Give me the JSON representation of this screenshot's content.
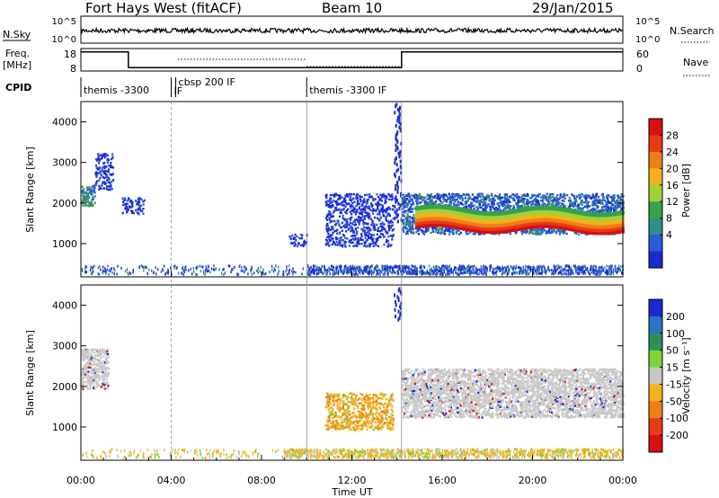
{
  "header": {
    "radar": "Fort Hays West (fitACF)",
    "beam": "Beam 10",
    "date": "29/Jan/2015"
  },
  "strips": {
    "nsky_label": "N.Sky",
    "nsearch_label": "N.Search",
    "nsky_ticks": [
      "10^5",
      "10^0"
    ],
    "nsearch_ticks": [
      "10^5",
      "10^0"
    ],
    "freq_label_1": "Freq.",
    "freq_label_2": "[MHz]",
    "freq_ticks": [
      "18",
      "8"
    ],
    "nave_label": "Nave",
    "nave_ticks": [
      "60",
      "0"
    ],
    "cpid_label": "CPID",
    "cpid_segments": [
      {
        "label": "themis -3300",
        "start": 0,
        "end": 4
      },
      {
        "label": "IF",
        "start": 4,
        "end": 4.2
      },
      {
        "label": "cbsp 200 IF",
        "start": 4.2,
        "end": 10
      },
      {
        "label": "themis -3300 IF",
        "start": 10,
        "end": 24
      }
    ],
    "freq_steps": [
      {
        "t0": 0,
        "t1": 2.1,
        "f": 16.5
      },
      {
        "t0": 2.1,
        "t1": 14.2,
        "f": 9.5
      },
      {
        "t0": 14.2,
        "t1": 24,
        "f": 16.5
      }
    ]
  },
  "time_axis": {
    "label": "Time UT",
    "ticks": [
      "00:00",
      "04:00",
      "08:00",
      "12:00",
      "16:00",
      "20:00",
      "00:00"
    ],
    "range": [
      0,
      24
    ]
  },
  "power_panel": {
    "ylabel": "Slant Range [km]",
    "yticks": [
      "1000",
      "2000",
      "3000",
      "4000"
    ],
    "colorbar_label": "Power [dB]",
    "colorbar_ticks": [
      "4",
      "8",
      "12",
      "16",
      "20",
      "24",
      "28"
    ],
    "colors": [
      "#1a2bd6",
      "#2a5cd8",
      "#2f8f8a",
      "#39a14a",
      "#9fd23a",
      "#f2b21c",
      "#f07e1a",
      "#e83b18",
      "#d81010"
    ]
  },
  "velocity_panel": {
    "ylabel": "Slant Range [km]",
    "yticks": [
      "1000",
      "2000",
      "3000",
      "4000"
    ],
    "colorbar_label": "Velocity [m s⁻¹]",
    "colorbar_ticks": [
      "200",
      "100",
      "50",
      "15",
      "-15",
      "-50",
      "-100",
      "-200"
    ],
    "colors": [
      "#1a2bd6",
      "#2a72c8",
      "#2f8f5a",
      "#7ed23a",
      "#c8c8c8",
      "#f2b21c",
      "#f07e1a",
      "#e83b18",
      "#d81010"
    ]
  },
  "chart_data": {
    "type": "heatmap",
    "x_range_hours": [
      0,
      24
    ],
    "y_range_km": [
      180,
      4500
    ],
    "power_regions": [
      {
        "t0": 0.0,
        "t1": 0.6,
        "r0": 1900,
        "r1": 2400,
        "level": "green"
      },
      {
        "t0": 0.6,
        "t1": 1.4,
        "r0": 2300,
        "r1": 3200,
        "level": "blue"
      },
      {
        "t0": 1.8,
        "t1": 2.8,
        "r0": 1700,
        "r1": 2100,
        "level": "blue"
      },
      {
        "t0": 9.2,
        "t1": 10.0,
        "r0": 900,
        "r1": 1200,
        "level": "blue"
      },
      {
        "t0": 10.8,
        "t1": 13.8,
        "r0": 900,
        "r1": 2200,
        "level": "blue"
      },
      {
        "t0": 14.2,
        "t1": 24.0,
        "r0": 1200,
        "r1": 2200,
        "level": "mixed"
      },
      {
        "t0": 14.8,
        "t1": 24.0,
        "r0": 1250,
        "r1": 1650,
        "level": "red_band"
      }
    ],
    "velocity_regions": [
      {
        "t0": 0.0,
        "t1": 1.2,
        "r0": 1900,
        "r1": 2900,
        "level": "gray"
      },
      {
        "t0": 10.8,
        "t1": 13.8,
        "r0": 900,
        "r1": 1800,
        "level": "orange"
      },
      {
        "t0": 14.2,
        "t1": 24.0,
        "r0": 1200,
        "r1": 2400,
        "level": "gray"
      }
    ]
  }
}
